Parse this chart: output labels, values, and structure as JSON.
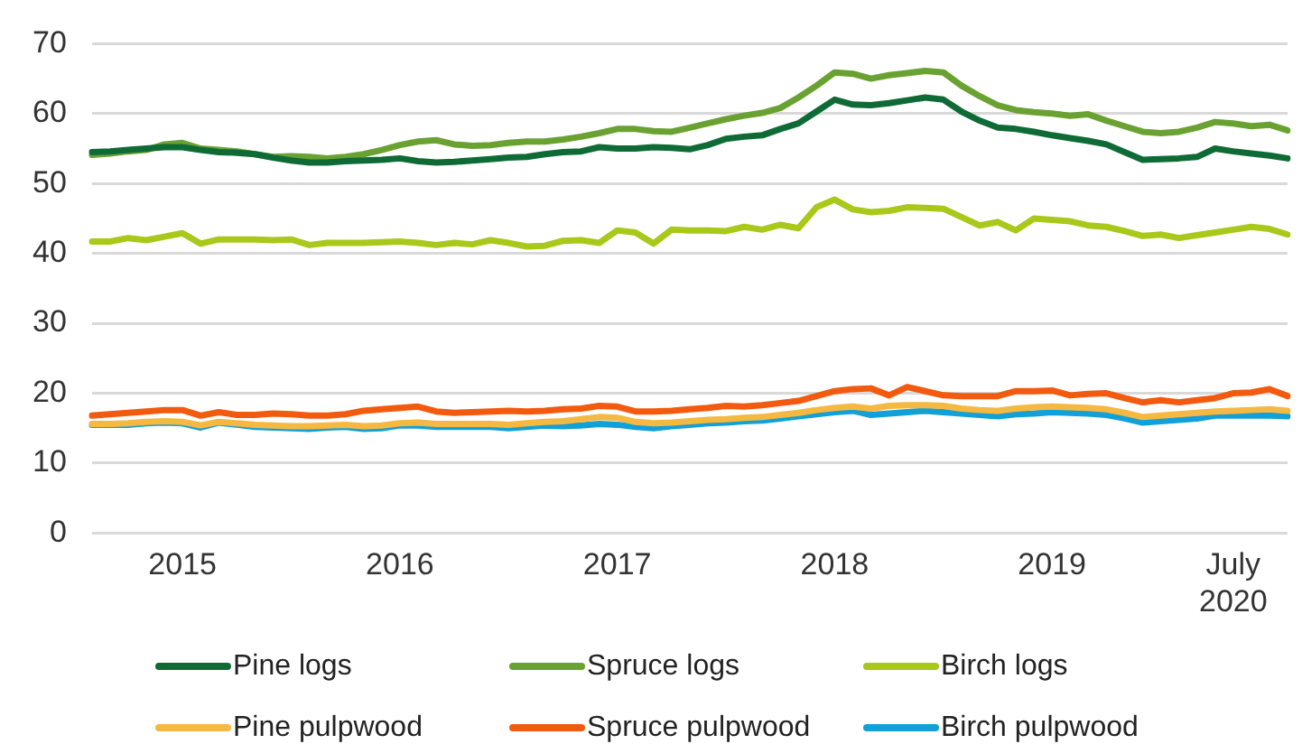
{
  "chart_data": {
    "type": "line",
    "legend": "bottom",
    "grid": "y",
    "marker": "none",
    "line_style": "solid",
    "ylim": [
      0,
      70
    ],
    "yticks": [
      0,
      10,
      20,
      30,
      40,
      50,
      60,
      70
    ],
    "categories": [
      null,
      null,
      null,
      null,
      null,
      "2015",
      null,
      null,
      null,
      null,
      null,
      null,
      null,
      null,
      null,
      null,
      null,
      "2016",
      null,
      null,
      null,
      null,
      null,
      null,
      null,
      null,
      null,
      null,
      null,
      "2017",
      null,
      null,
      null,
      null,
      null,
      null,
      null,
      null,
      null,
      null,
      null,
      "2018",
      null,
      null,
      null,
      null,
      null,
      null,
      null,
      null,
      null,
      null,
      null,
      "2019",
      null,
      null,
      null,
      null,
      null,
      null,
      null,
      null,
      null,
      "July\n2020",
      null,
      null,
      null
    ],
    "series": [
      {
        "name": "Pine logs",
        "color": "#0f6b35",
        "values": [
          54.5,
          54.6,
          54.8,
          55.0,
          55.2,
          55.2,
          54.8,
          54.5,
          54.4,
          54.2,
          53.7,
          53.3,
          53.0,
          53.0,
          53.2,
          53.3,
          53.4,
          53.6,
          53.2,
          53.0,
          53.1,
          53.3,
          53.5,
          53.7,
          53.8,
          54.2,
          54.5,
          54.6,
          55.2,
          55.0,
          55.0,
          55.2,
          55.1,
          54.9,
          55.5,
          56.4,
          56.7,
          56.9,
          57.8,
          58.6,
          60.3,
          62.0,
          61.3,
          61.2,
          61.5,
          61.9,
          62.3,
          62.0,
          60.3,
          59.0,
          58.0,
          57.8,
          57.4,
          56.9,
          56.5,
          56.1,
          55.6,
          54.5,
          53.4,
          53.5,
          53.6,
          53.8,
          55.0,
          54.6,
          54.3,
          54.0,
          53.6
        ]
      },
      {
        "name": "Spruce logs",
        "color": "#6aa232",
        "values": [
          54.1,
          54.3,
          54.6,
          54.8,
          55.6,
          55.8,
          55.0,
          54.8,
          54.6,
          54.2,
          53.8,
          53.9,
          53.8,
          53.6,
          53.8,
          54.2,
          54.8,
          55.5,
          56.0,
          56.2,
          55.6,
          55.4,
          55.5,
          55.8,
          56.0,
          56.0,
          56.3,
          56.7,
          57.2,
          57.8,
          57.8,
          57.5,
          57.4,
          58.0,
          58.6,
          59.2,
          59.7,
          60.1,
          60.8,
          62.3,
          64.0,
          65.9,
          65.7,
          65.0,
          65.5,
          65.8,
          66.1,
          65.9,
          64.0,
          62.5,
          61.2,
          60.5,
          60.2,
          60.0,
          59.7,
          59.9,
          59.0,
          58.2,
          57.4,
          57.2,
          57.4,
          58.0,
          58.8,
          58.6,
          58.2,
          58.4,
          57.6
        ]
      },
      {
        "name": "Birch logs",
        "color": "#a8c81a",
        "values": [
          41.7,
          41.7,
          42.2,
          41.9,
          42.4,
          42.9,
          41.4,
          42.0,
          42.0,
          42.0,
          41.9,
          42.0,
          41.2,
          41.5,
          41.5,
          41.5,
          41.6,
          41.7,
          41.5,
          41.2,
          41.5,
          41.3,
          41.9,
          41.5,
          41.0,
          41.1,
          41.8,
          41.9,
          41.5,
          43.3,
          43.0,
          41.4,
          43.4,
          43.3,
          43.3,
          43.2,
          43.8,
          43.4,
          44.1,
          43.6,
          46.6,
          47.7,
          46.3,
          45.9,
          46.1,
          46.6,
          46.5,
          46.4,
          45.2,
          44.0,
          44.5,
          43.3,
          45.0,
          44.8,
          44.6,
          44.0,
          43.8,
          43.2,
          42.5,
          42.7,
          42.2,
          42.6,
          43.0,
          43.4,
          43.8,
          43.5,
          42.7
        ]
      },
      {
        "name": "Pine pulpwood",
        "color": "#f5b942",
        "values": [
          15.6,
          15.6,
          15.7,
          15.9,
          16.0,
          15.9,
          15.4,
          15.9,
          15.7,
          15.5,
          15.4,
          15.3,
          15.3,
          15.4,
          15.5,
          15.3,
          15.4,
          15.7,
          15.8,
          15.6,
          15.6,
          15.6,
          15.6,
          15.5,
          15.7,
          15.9,
          16.0,
          16.3,
          16.6,
          16.5,
          15.9,
          15.7,
          15.8,
          16.0,
          16.2,
          16.3,
          16.5,
          16.6,
          16.9,
          17.2,
          17.6,
          17.9,
          18.1,
          17.8,
          18.2,
          18.3,
          18.3,
          18.2,
          17.8,
          17.6,
          17.5,
          17.8,
          18.0,
          18.1,
          18.0,
          17.9,
          17.7,
          17.2,
          16.6,
          16.8,
          17.0,
          17.2,
          17.4,
          17.5,
          17.6,
          17.7,
          17.5
        ]
      },
      {
        "name": "Spruce pulpwood",
        "color": "#f25a0f",
        "values": [
          16.8,
          17.0,
          17.2,
          17.4,
          17.6,
          17.6,
          16.8,
          17.3,
          16.9,
          16.9,
          17.1,
          17.0,
          16.8,
          16.8,
          17.0,
          17.5,
          17.7,
          17.9,
          18.1,
          17.4,
          17.2,
          17.3,
          17.4,
          17.5,
          17.4,
          17.5,
          17.7,
          17.8,
          18.2,
          18.1,
          17.4,
          17.4,
          17.5,
          17.7,
          17.9,
          18.2,
          18.1,
          18.3,
          18.6,
          18.9,
          19.6,
          20.3,
          20.6,
          20.7,
          19.7,
          20.9,
          20.3,
          19.7,
          19.6,
          19.6,
          19.6,
          20.3,
          20.3,
          20.4,
          19.7,
          19.9,
          20.0,
          19.3,
          18.7,
          19.0,
          18.7,
          19.0,
          19.3,
          20.0,
          20.1,
          20.6,
          19.6
        ]
      },
      {
        "name": "Birch pulpwood",
        "color": "#12a0d8",
        "values": [
          15.5,
          15.5,
          15.5,
          15.7,
          15.8,
          15.7,
          15.1,
          15.8,
          15.5,
          15.2,
          15.1,
          15.0,
          14.9,
          15.1,
          15.2,
          14.9,
          15.0,
          15.4,
          15.4,
          15.2,
          15.2,
          15.2,
          15.2,
          15.0,
          15.2,
          15.4,
          15.3,
          15.4,
          15.6,
          15.5,
          15.2,
          15.0,
          15.3,
          15.5,
          15.7,
          15.8,
          16.0,
          16.1,
          16.4,
          16.7,
          17.0,
          17.3,
          17.5,
          16.9,
          17.1,
          17.3,
          17.5,
          17.3,
          17.1,
          16.9,
          16.7,
          17.0,
          17.1,
          17.3,
          17.2,
          17.1,
          16.9,
          16.4,
          15.8,
          16.0,
          16.2,
          16.4,
          16.8,
          16.8,
          16.8,
          16.8,
          16.7
        ]
      }
    ]
  }
}
